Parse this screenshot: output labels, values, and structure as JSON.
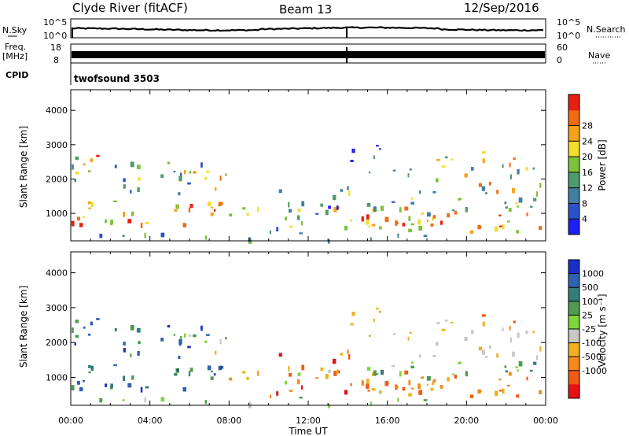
{
  "header": {
    "station": "Clyde River (fitACF)",
    "beam": "Beam 13",
    "date": "12/Sep/2016"
  },
  "noise_panel": {
    "left_label": "N.Sky",
    "right_label": "N.Search",
    "tick_top": "10^5",
    "tick_bottom": "10^0"
  },
  "freq_panel": {
    "left_label_1": "Freq.",
    "left_label_2": "[MHz]",
    "right_label": "Nave",
    "left_ticks": [
      "18",
      "8"
    ],
    "right_ticks": [
      "60",
      "0"
    ]
  },
  "cpid": {
    "label": "CPID",
    "program": "twofsound 3503"
  },
  "chart_data": [
    {
      "type": "heatmap",
      "name": "power",
      "ylabel": "Slant Range [km]",
      "yticks": [
        "1000",
        "2000",
        "3000",
        "4000"
      ],
      "xticks": [
        "00:00",
        "04:00",
        "08:00",
        "12:00",
        "16:00",
        "20:00",
        "00:00"
      ],
      "colorbar": {
        "label": "Power [dB]",
        "ticks": [
          "4",
          "8",
          "12",
          "16",
          "20",
          "24",
          "28"
        ],
        "colors": [
          "#1f1ff5",
          "#2a52c8",
          "#3f7fa4",
          "#4f9a6e",
          "#7cc23a",
          "#f3df2a",
          "#f5a21a",
          "#f36a12",
          "#ea1e10"
        ]
      }
    },
    {
      "type": "heatmap",
      "name": "velocity",
      "ylabel": "Slant Range [km]",
      "yticks": [
        "1000",
        "2000",
        "3000",
        "4000"
      ],
      "xticks": [
        "00:00",
        "04:00",
        "08:00",
        "12:00",
        "16:00",
        "20:00",
        "00:00"
      ],
      "xlabel": "Time UT",
      "colorbar": {
        "label": "Velocity  [m s⁻¹]",
        "ticks": [
          "1000",
          "500",
          "100",
          "25",
          "-25",
          "-100",
          "-500",
          "-1000"
        ],
        "colors": [
          "#1a2fc8",
          "#2d63b0",
          "#347e7a",
          "#4e9a50",
          "#7fd63a",
          "#c8c8c2",
          "#f0b020",
          "#f58a18",
          "#f05a14",
          "#e81010"
        ]
      }
    }
  ]
}
